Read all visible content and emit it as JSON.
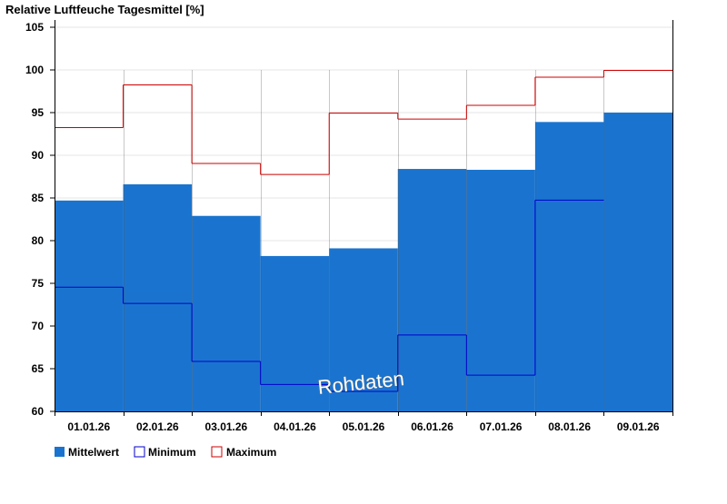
{
  "chart_data": {
    "type": "bar",
    "ylabel": "Relative Luftfeuche Tagesmittel [%]",
    "categories": [
      "01.01.26",
      "02.01.26",
      "03.01.26",
      "04.01.26",
      "05.01.26",
      "06.01.26",
      "07.01.26",
      "08.01.26",
      "09.01.26"
    ],
    "series": [
      {
        "name": "Mittelwert",
        "values": [
          84.7,
          86.6,
          82.9,
          78.2,
          79.1,
          88.4,
          88.3,
          93.9,
          95.0
        ]
      },
      {
        "name": "Minimum",
        "values": [
          74.6,
          72.7,
          65.9,
          63.2,
          62.4,
          69.0,
          64.3,
          84.8,
          null
        ]
      },
      {
        "name": "Maximum",
        "values": [
          93.3,
          98.3,
          89.1,
          87.8,
          95.0,
          94.3,
          95.9,
          99.2,
          100.0
        ]
      }
    ],
    "ylim": [
      60,
      105
    ],
    "yticks": [
      60,
      65,
      70,
      75,
      80,
      85,
      90,
      95,
      100,
      105
    ],
    "grid": true,
    "legend_position": "bottom-left",
    "watermark": "Rohdaten",
    "colors": {
      "mean_fill": "#1a74cf",
      "minimum_line": "#0000cc",
      "maximum_line": "#cc0000",
      "grid": "#e6e6e6",
      "axis": "#000000"
    }
  }
}
